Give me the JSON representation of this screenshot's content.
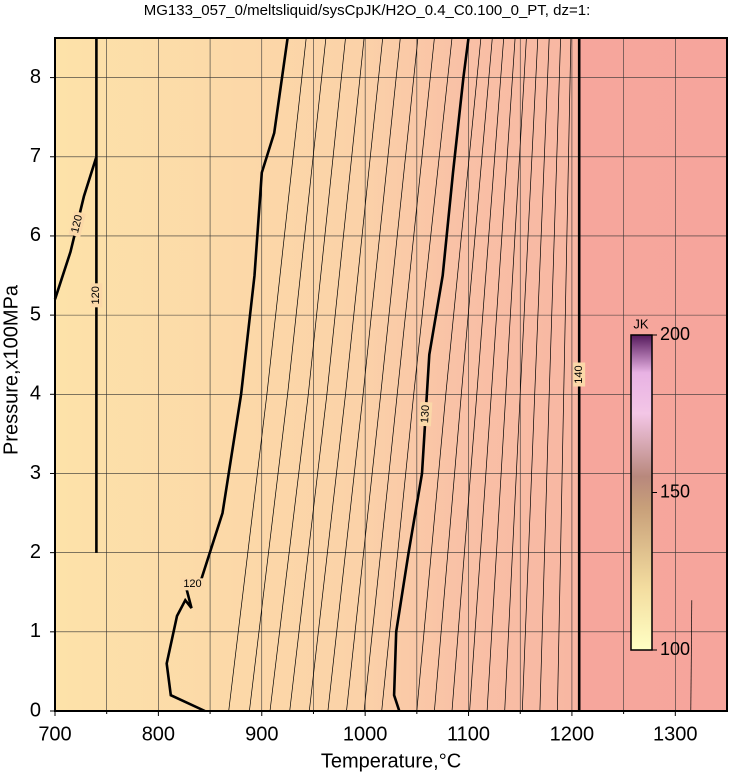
{
  "chart_data": {
    "type": "contour",
    "title": "MG133_057_0/meltsliquid/sysCpJK/H2O_0.4_C0.100_0_PT, dz=1:",
    "xlabel": "Temperature,°C",
    "ylabel": "Pressure,x100MPa",
    "xlim": [
      700,
      1350
    ],
    "ylim": [
      0,
      8.5
    ],
    "xticks": [
      700,
      800,
      900,
      1000,
      1100,
      1200,
      1300
    ],
    "xminor": [
      750,
      850,
      950,
      1050,
      1150,
      1250
    ],
    "yticks": [
      0,
      1,
      2,
      3,
      4,
      5,
      6,
      7,
      8
    ],
    "grid": true,
    "colorbar": {
      "label": "JK",
      "clim": [
        100,
        200
      ],
      "ticks": [
        100,
        150,
        200
      ]
    },
    "contours": [
      {
        "level": 120,
        "x": [
          845,
          812,
          808,
          818,
          826,
          832,
          826,
          840,
          862,
          880,
          893,
          900,
          912,
          925,
          null,
          740,
          740,
          null,
          700,
          715,
          728,
          740
        ],
        "y": [
          0,
          0.2,
          0.6,
          1.2,
          1.4,
          1.3,
          1.6,
          1.6,
          2.5,
          4.0,
          5.5,
          6.8,
          7.3,
          8.5,
          null,
          2.0,
          8.5,
          null,
          5.2,
          5.8,
          6.5,
          7.0
        ]
      },
      {
        "level": 121,
        "x": [
          868,
          905,
          943
        ],
        "y": [
          0,
          4,
          8.5
        ]
      },
      {
        "level": 122,
        "x": [
          888,
          925,
          962
        ],
        "y": [
          0,
          4,
          8.5
        ]
      },
      {
        "level": 123,
        "x": [
          908,
          945,
          981
        ],
        "y": [
          0,
          4,
          8.5
        ]
      },
      {
        "level": 124,
        "x": [
          927,
          963,
          999
        ],
        "y": [
          0,
          4,
          8.5
        ]
      },
      {
        "level": 125,
        "x": [
          946,
          981,
          1017
        ],
        "y": [
          0,
          4,
          8.5
        ]
      },
      {
        "level": 126,
        "x": [
          964,
          998,
          1034
        ],
        "y": [
          0,
          4,
          8.5
        ]
      },
      {
        "level": 127,
        "x": [
          982,
          1015,
          1051
        ],
        "y": [
          0,
          4,
          8.5
        ]
      },
      {
        "level": 128,
        "x": [
          999,
          1031,
          1067
        ],
        "y": [
          0,
          4,
          8.5
        ]
      },
      {
        "level": 129,
        "x": [
          1016,
          1047,
          1084
        ],
        "y": [
          0,
          4,
          8.5
        ]
      },
      {
        "level": 130,
        "x": [
          1033,
          1028,
          1030,
          1042,
          1055,
          1062,
          1075,
          1085,
          1095,
          1100
        ],
        "y": [
          0,
          0.2,
          1.0,
          2.0,
          3.0,
          4.5,
          5.5,
          6.8,
          8.0,
          8.5
        ]
      },
      {
        "level": 131,
        "x": [
          1050,
          1078,
          1112
        ],
        "y": [
          0,
          4,
          8.5
        ]
      },
      {
        "level": 132,
        "x": [
          1067,
          1093,
          1123
        ],
        "y": [
          0,
          4,
          8.5
        ]
      },
      {
        "level": 133,
        "x": [
          1084,
          1108,
          1134
        ],
        "y": [
          0,
          4,
          8.5
        ]
      },
      {
        "level": 134,
        "x": [
          1101,
          1122,
          1145
        ],
        "y": [
          0,
          4,
          8.5
        ]
      },
      {
        "level": 135,
        "x": [
          1118,
          1136,
          1156
        ],
        "y": [
          0,
          4,
          8.5
        ]
      },
      {
        "level": 136,
        "x": [
          1135,
          1150,
          1167
        ],
        "y": [
          0,
          4,
          8.5
        ]
      },
      {
        "level": 137,
        "x": [
          1152,
          1164,
          1178
        ],
        "y": [
          0,
          4,
          8.5
        ]
      },
      {
        "level": 138,
        "x": [
          1169,
          1178,
          1189
        ],
        "y": [
          0,
          4,
          8.5
        ]
      },
      {
        "level": 139,
        "x": [
          1186,
          1192,
          1199
        ],
        "y": [
          0,
          4,
          8.5
        ]
      },
      {
        "level": 140,
        "x": [
          1207,
          1207
        ],
        "y": [
          0,
          8.5
        ]
      },
      {
        "level": 141,
        "x": [
          1315,
          1316
        ],
        "y": [
          0,
          1.4
        ]
      }
    ]
  }
}
